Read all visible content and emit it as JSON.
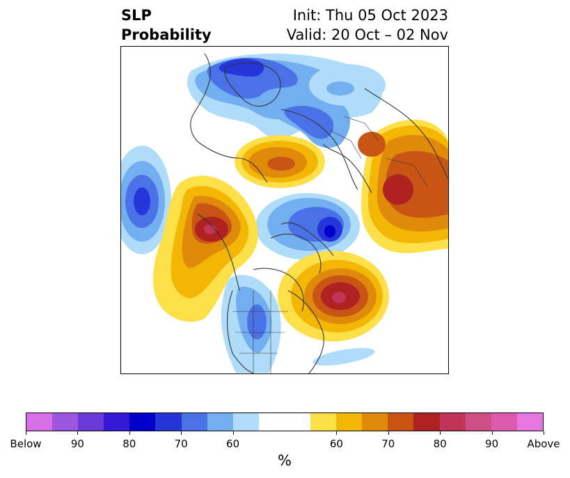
{
  "header": {
    "variable_line1": "SLP",
    "variable_line2": "Probability",
    "init_text": "Init: Thu 05 Oct 2023",
    "valid_text": "Valid: 20 Oct – 02 Nov"
  },
  "map": {
    "projection": "north-polar-stereographic",
    "coastline_color": "#333333",
    "anomalies": [
      {
        "region": "Greenland / Baffin Bay",
        "sign": "below",
        "peak_percent": 80
      },
      {
        "region": "North Pacific",
        "sign": "below",
        "peak_percent": 75
      },
      {
        "region": "Scandinavia / Arctic Europe",
        "sign": "below",
        "peak_percent": 70
      },
      {
        "region": "Siberia / East Asia",
        "sign": "below",
        "peak_percent": 75
      },
      {
        "region": "Western United States",
        "sign": "below",
        "peak_percent": 65
      },
      {
        "region": "Alaska / Gulf of Alaska",
        "sign": "above",
        "peak_percent": 85
      },
      {
        "region": "Northwest Atlantic / New England",
        "sign": "above",
        "peak_percent": 85
      },
      {
        "region": "Central Russia",
        "sign": "above",
        "peak_percent": 80
      },
      {
        "region": "Barents / Kara Sea",
        "sign": "above",
        "peak_percent": 70
      }
    ]
  },
  "colorbar": {
    "unit_label": "%",
    "colors": [
      "#d76fe6",
      "#9d55e0",
      "#6a3ad9",
      "#3319d6",
      "#0000cc",
      "#2436d9",
      "#4a72e6",
      "#73aef0",
      "#aedcf9",
      "#ffffff",
      "#ffffff",
      "#fddf4a",
      "#f4b604",
      "#e08a0c",
      "#c85514",
      "#b02222",
      "#c23557",
      "#cf4e85",
      "#dc5bad",
      "#e677e0"
    ],
    "tick_labels": [
      "Below",
      "90",
      "80",
      "70",
      "60",
      "60",
      "70",
      "80",
      "90",
      "Above"
    ]
  }
}
